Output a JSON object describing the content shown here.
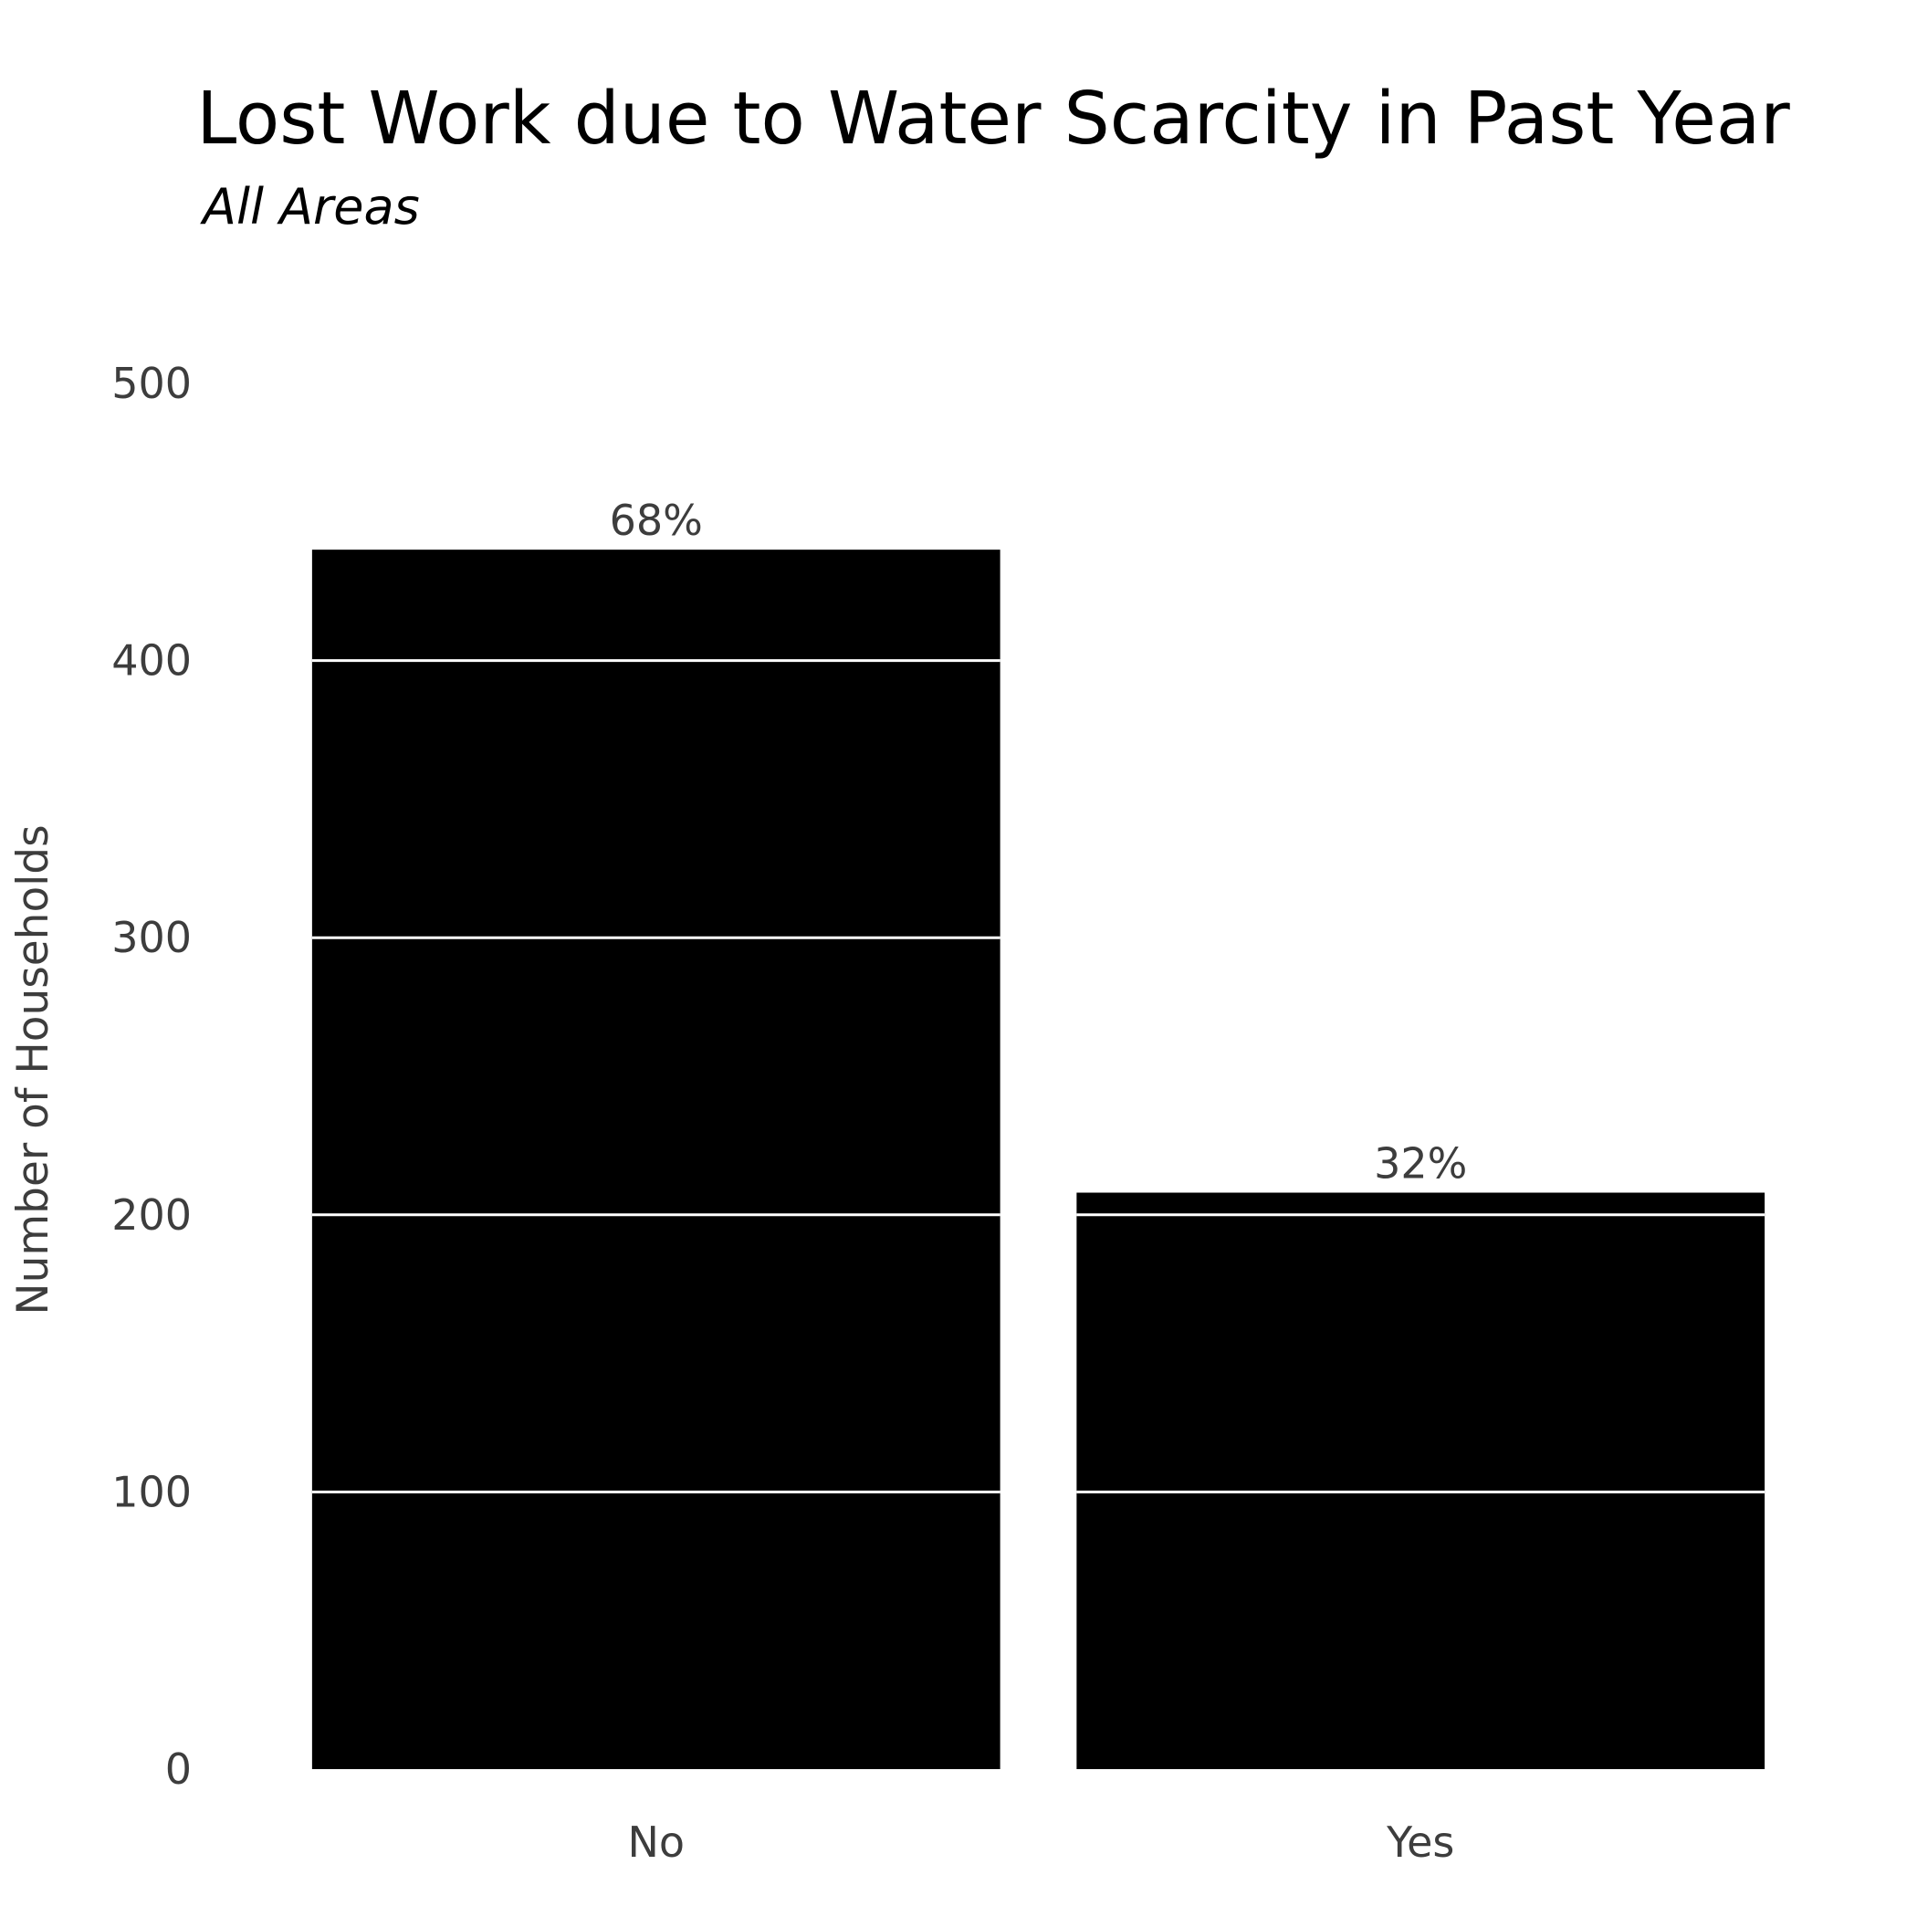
{
  "chart_data": {
    "type": "bar",
    "title": "Lost Work due to Water Scarcity in Past Year",
    "subtitle": "All Areas",
    "xlabel": "",
    "ylabel": "Number of Households",
    "categories": [
      "No",
      "Yes"
    ],
    "values": [
      440,
      208
    ],
    "data_labels": [
      "68%",
      "32%"
    ],
    "ylim": [
      0,
      500
    ],
    "yticks": [
      0,
      100,
      200,
      300,
      400,
      500
    ],
    "ytick_labels": [
      "0",
      "100",
      "200",
      "300",
      "400",
      "500"
    ],
    "grid": "horizontal, drawn over bars in white",
    "legend": "none",
    "colors": {
      "bar": "#000000",
      "gridline_on_bar": "#ffffff",
      "tick_text": "#3d3d3d",
      "title_text": "#000000"
    }
  }
}
